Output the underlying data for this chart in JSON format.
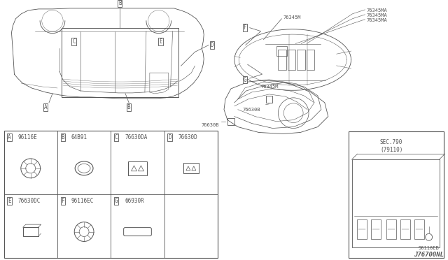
{
  "bg_color": "#ffffff",
  "line_color": "#555555",
  "diagram_number": "J76700NL",
  "part_labels": {
    "A": "96116E",
    "B": "64B91",
    "C": "76630DA",
    "D": "76630D",
    "E": "76630DC",
    "F": "96116EC",
    "G": "66930R"
  },
  "top_view_labels": {
    "F": "76345M",
    "G": "76345M",
    "MA1": "76345MA",
    "MA2": "76345MA",
    "MA3": "76345MA"
  },
  "ref_labels": {
    "sec": "SEC.790",
    "sec2": "(79110)",
    "part": "96116EB",
    "trunk1": "76630B",
    "trunk2": "76630B"
  }
}
